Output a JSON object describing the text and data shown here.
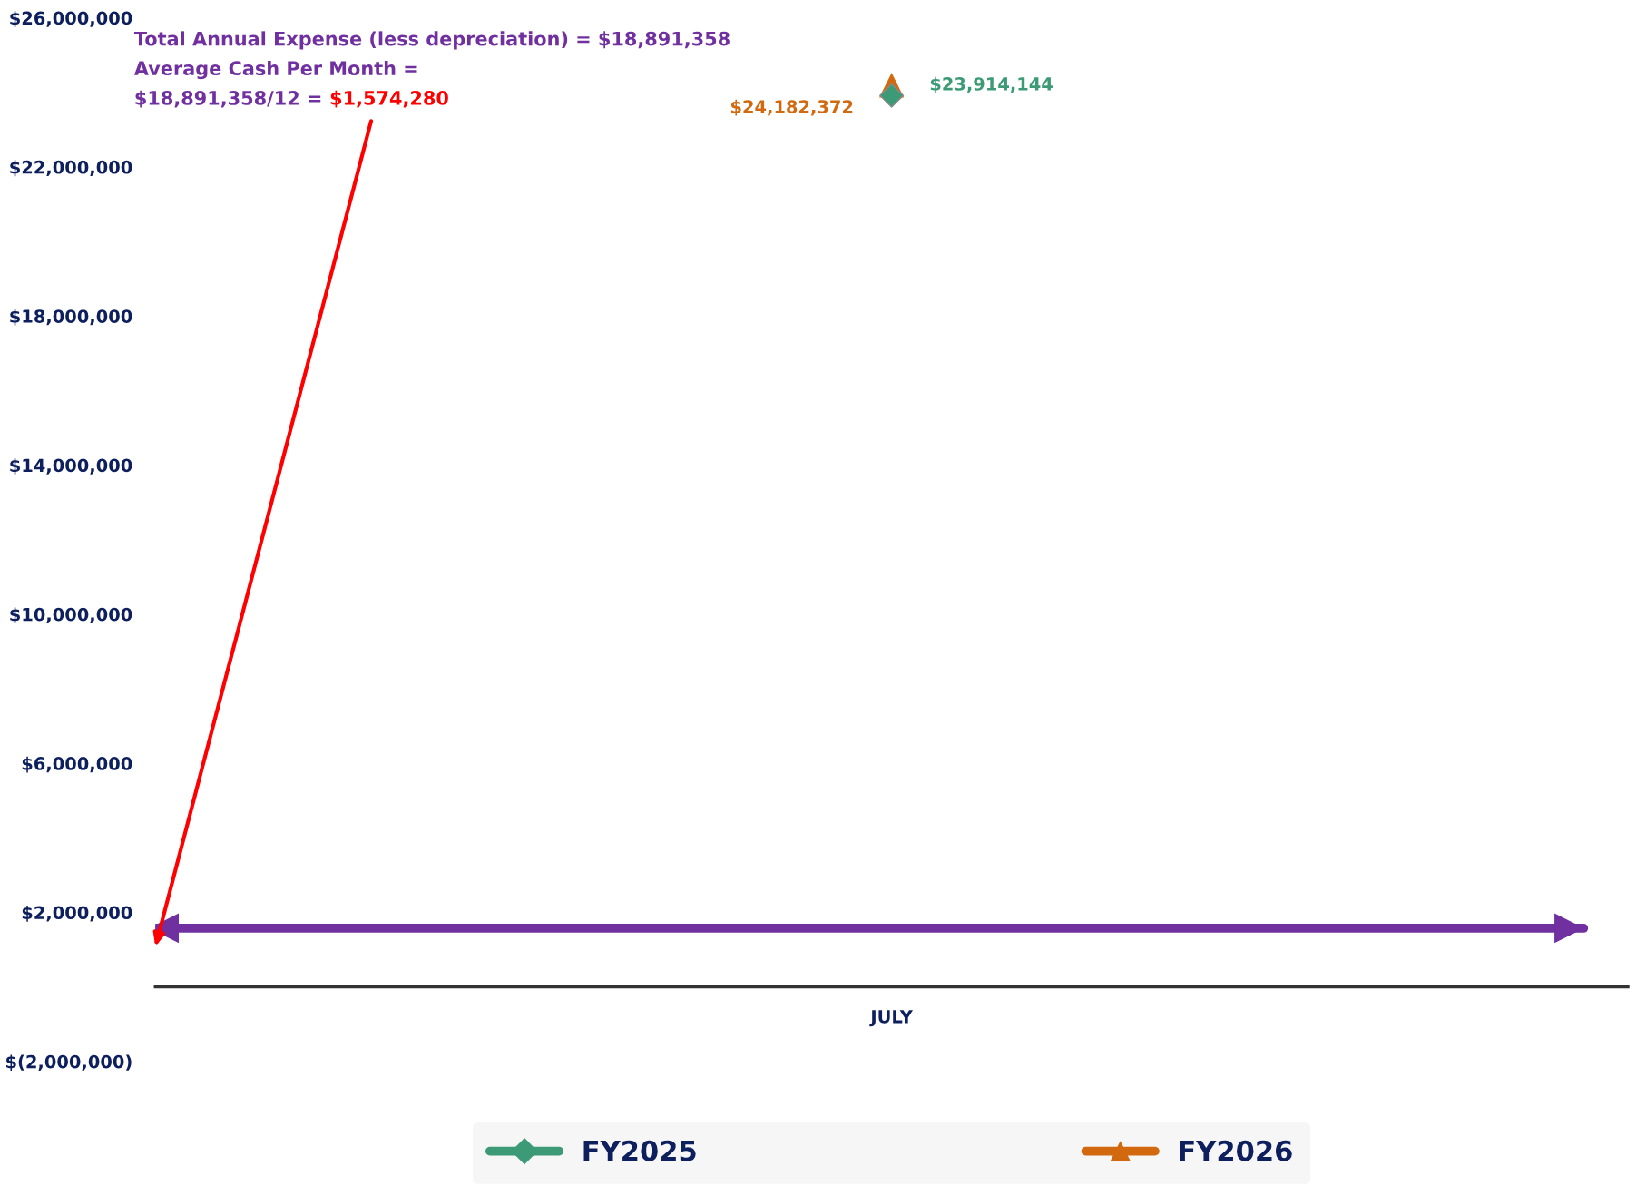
{
  "chart_data": {
    "type": "line",
    "categories": [
      "JULY"
    ],
    "series": [
      {
        "name": "FY2025",
        "color": "#3c9b76",
        "marker": "diamond",
        "values": [
          23914144
        ],
        "value_labels": [
          "$23,914,144"
        ]
      },
      {
        "name": "FY2026",
        "color": "#d2690e",
        "marker": "triangle",
        "values": [
          24182372
        ],
        "value_labels": [
          "$24,182,372"
        ]
      }
    ],
    "ylim": [
      -2000000,
      26000000
    ],
    "yticks": [
      {
        "value": 26000000,
        "label": "$26,000,000"
      },
      {
        "value": 22000000,
        "label": "$22,000,000"
      },
      {
        "value": 18000000,
        "label": "$18,000,000"
      },
      {
        "value": 14000000,
        "label": "$14,000,000"
      },
      {
        "value": 10000000,
        "label": "$10,000,000"
      },
      {
        "value": 6000000,
        "label": "$6,000,000"
      },
      {
        "value": 2000000,
        "label": "$2,000,000"
      },
      {
        "value": -2000000,
        "label": "$(2,000,000)"
      }
    ],
    "ref_lines": [
      {
        "axis": "y",
        "value": 1574280,
        "color": "#7030a0"
      }
    ],
    "annotations": [
      "Total Annual Expense (less depreciation) = $18,891,358",
      "Average Cash Per Month =",
      "$18,891,358/12 = ",
      "$1,574,280"
    ],
    "grid": false,
    "legend": "bottom"
  }
}
